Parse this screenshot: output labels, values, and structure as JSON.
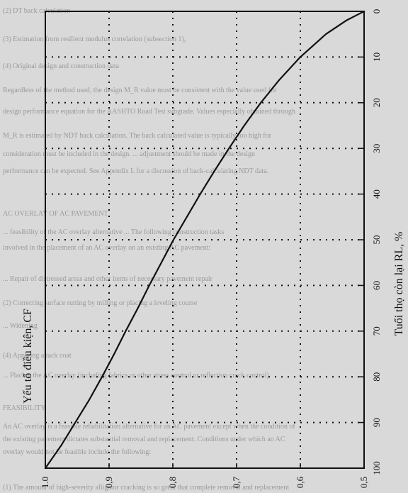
{
  "chart_data": {
    "type": "line",
    "orientation": "rotated-90-clockwise",
    "title": "",
    "xlabel": "Tuổi thọ còn lại RL, %",
    "ylabel": "Yếu tố điều kiện, CF",
    "xlim": [
      0,
      100
    ],
    "ylim": [
      0.5,
      1.0
    ],
    "x_ticks": [
      "0",
      "10",
      "20",
      "30",
      "40",
      "50",
      "60",
      "70",
      "80",
      "90",
      "100"
    ],
    "y_ticks": [
      "1.0",
      "0,9",
      "0,8",
      "0,7",
      "0,6",
      "0,5"
    ],
    "grid": true,
    "series": [
      {
        "x": [
          0,
          2,
          5,
          10,
          15,
          20,
          25,
          30,
          35,
          40,
          45,
          50,
          55,
          60,
          65,
          70,
          75,
          80,
          85,
          90,
          95,
          100
        ],
        "y": [
          0.5,
          0.528,
          0.56,
          0.6,
          0.633,
          0.662,
          0.688,
          0.712,
          0.735,
          0.757,
          0.778,
          0.799,
          0.818,
          0.837,
          0.855,
          0.874,
          0.892,
          0.911,
          0.931,
          0.953,
          0.975,
          1.0
        ]
      }
    ]
  },
  "colors": {
    "background": "#d9d9d9",
    "ink": "#111111",
    "grid": "#111111",
    "faded_text": "#9a9a9a"
  },
  "background_text": [
    "(2) DT back calculation",
    "(3) Estimation from resilient modulus correlation (subsection 1),",
    "(4) Original design and construction data",
    "Regardless of the method used, the design M_R value must be consistent with the value used for",
    "design performance equation for the AASHTO Road Test subgrade. Values especially obtained through",
    "M_R is estimated by NDT back calculation. The back calculated value is typically too high for",
    "consideration must be included in the design. ... adjustment should be made in the design",
    "performance can be expected. See Appendix L for a discussion of back-calculating NDT data.",
    "AC OVERLAY OF AC PAVEMENT",
    "... feasibility of the AC overlay alternative ... The following construction tasks",
    "involved in the placement of an AC overlay on an existing AC pavement:",
    "... Repair of distressed areas and other items of necessary pavement repair",
    "(2) Correcting surface rutting by milling or placing a leveling course",
    "... Widening",
    "(4) Applying a tack coat",
    "... Placing the AC overlay (including fabrics or other stress control or reflection crack control)",
    "FEASIBILITY",
    "An AC overlay is a feasible rehabilitation alternative for an AC pavement except when the condition of",
    "the existing pavement dictates substantial removal and replacement. Conditions under which an AC",
    "overlay would not be feasible include the following:",
    "(1) The amount of high-severity alligator cracking is so great that complete removal and replacement"
  ]
}
